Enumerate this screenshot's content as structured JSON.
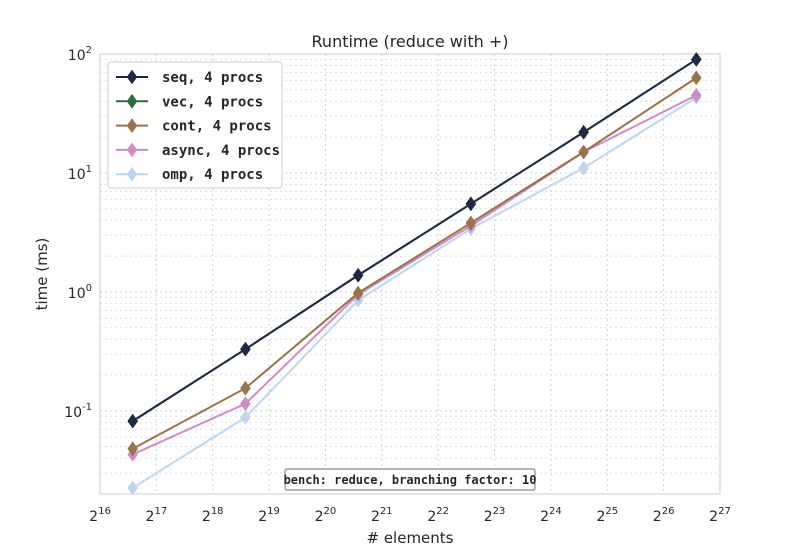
{
  "chart_data": {
    "type": "line",
    "title": "Runtime (reduce with +)",
    "xlabel": "# elements",
    "ylabel": "time (ms)",
    "x_scale": "log2",
    "y_scale": "log10",
    "xlim_exp": [
      16,
      27
    ],
    "ylim": [
      0.02,
      100
    ],
    "x_tick_exps": [
      "16",
      "17",
      "18",
      "19",
      "20",
      "21",
      "22",
      "23",
      "24",
      "25",
      "26",
      "27"
    ],
    "y_ticks": [
      {
        "mant": "10",
        "exp": "-1",
        "value": 0.1
      },
      {
        "mant": "10",
        "exp": "0",
        "value": 1
      },
      {
        "mant": "10",
        "exp": "1",
        "value": 10
      },
      {
        "mant": "10",
        "exp": "2",
        "value": 100
      }
    ],
    "x_exps": [
      16.58,
      18.58,
      20.58,
      22.58,
      24.58,
      26.58
    ],
    "grid": true,
    "legend_position": "top-left",
    "annotation": "bench: reduce, branching factor: 10",
    "series": [
      {
        "name": "seq, 4 procs",
        "color": "#1f2a44",
        "values": [
          0.082,
          0.33,
          1.38,
          5.5,
          22,
          90
        ]
      },
      {
        "name": "vec, 4 procs",
        "color": "#2e6b3e",
        "values": [
          0.082,
          0.33,
          1.38,
          5.5,
          22,
          90
        ]
      },
      {
        "name": "cont, 4 procs",
        "color": "#9a7245",
        "values": [
          0.048,
          0.155,
          0.98,
          3.8,
          15,
          63
        ]
      },
      {
        "name": "async, 4 procs",
        "color": "#d08cc8",
        "values": [
          0.043,
          0.115,
          0.95,
          3.6,
          15,
          45
        ]
      },
      {
        "name": "omp, 4 procs",
        "color": "#bdd6ee",
        "values": [
          0.0225,
          0.088,
          0.85,
          3.4,
          11,
          43
        ]
      }
    ]
  }
}
